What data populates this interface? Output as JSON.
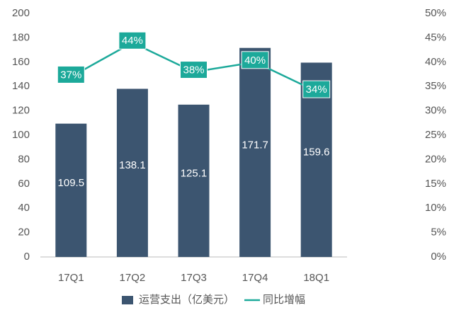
{
  "chart_data": {
    "type": "bar",
    "categories": [
      "17Q1",
      "17Q2",
      "17Q3",
      "17Q4",
      "18Q1"
    ],
    "series": [
      {
        "name": "运营支出（亿美元）",
        "type": "bar",
        "color": "#3c5570",
        "values": [
          109.5,
          138.1,
          125.1,
          171.7,
          159.6
        ]
      },
      {
        "name": "同比增幅",
        "type": "line",
        "axis": "y2",
        "color": "#1ca99a",
        "values": [
          37,
          44,
          38,
          40,
          34
        ],
        "value_labels": [
          "37%",
          "44%",
          "38%",
          "40%",
          "34%"
        ]
      }
    ],
    "ylim": [
      0,
      200
    ],
    "yticks": [
      0,
      20,
      40,
      60,
      80,
      100,
      120,
      140,
      160,
      180,
      200
    ],
    "y2lim": [
      0,
      50
    ],
    "y2ticks": [
      {
        "value": 0,
        "label": "0%"
      },
      {
        "value": 5,
        "label": "5%"
      },
      {
        "value": 10,
        "label": "10%"
      },
      {
        "value": 15,
        "label": "15%"
      },
      {
        "value": 20,
        "label": "20%"
      },
      {
        "value": 25,
        "label": "25%"
      },
      {
        "value": 30,
        "label": "30%"
      },
      {
        "value": 35,
        "label": "35%"
      },
      {
        "value": 40,
        "label": "40%"
      },
      {
        "value": 45,
        "label": "45%"
      },
      {
        "value": 50,
        "label": "50%"
      }
    ],
    "grid": false
  }
}
